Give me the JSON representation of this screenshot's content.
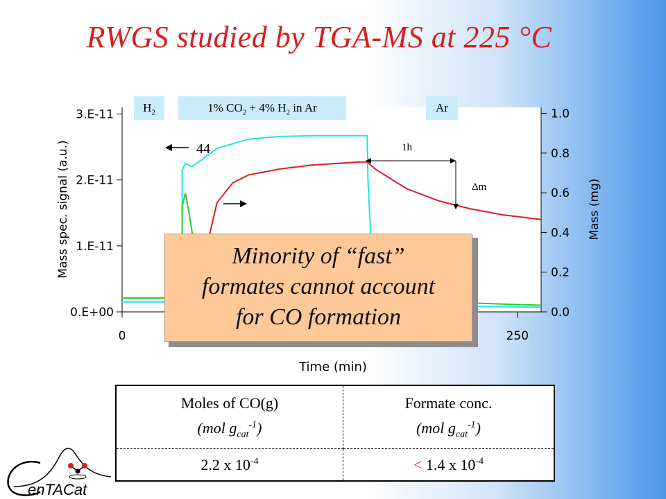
{
  "title": "RWGS studied by TGA-MS at 225 °C",
  "gas_tags": {
    "h2": {
      "base": "H",
      "sub": "2"
    },
    "feed": {
      "p1": "1% CO",
      "s1": "2",
      "p2": " + 4% H",
      "s2": "2",
      "p3": " in Ar"
    },
    "ar": "Ar"
  },
  "annotations": {
    "m44": "44",
    "one_hour": "1h",
    "delta_m": "Δm"
  },
  "callout_lines": [
    "Minority of “fast”",
    "formates cannot account",
    "for CO formation"
  ],
  "table": {
    "col1_header": {
      "line1": "Moles of CO(g)",
      "line2_pre": "(mol g",
      "line2_sub": "cat",
      "line2_sup": "-1",
      "line2_post": ")"
    },
    "col2_header": {
      "line1": "Formate conc.",
      "line2_pre": "(mol g",
      "line2_sub": "cat",
      "line2_sup": "-1",
      "line2_post": ")"
    },
    "col1_value": {
      "base": "2.2 x 10",
      "sup": "-4"
    },
    "col2_value": {
      "prefix": "<",
      "base": " 1.4 x 10",
      "sup": "-4"
    }
  },
  "logo": {
    "text": "enTACat",
    "initial": "C"
  },
  "chart_data": {
    "type": "line",
    "xlabel": "Time (min)",
    "ylabel_left": "Mass spec. signal (a.u.)",
    "ylabel_right": "Mass (mg)",
    "x_ticks": [
      "0",
      "250"
    ],
    "y_left_ticks": [
      "0.E+00",
      "1.E-11",
      "2.E-11",
      "3.E-11"
    ],
    "y_right_ticks": [
      "0.0",
      "0.2",
      "0.4",
      "0.6",
      "0.8",
      "1.0"
    ],
    "xlim": [
      0,
      265
    ],
    "ylim_left": [
      0,
      3.1e-11
    ],
    "ylim_right": [
      0,
      1.03
    ],
    "grid": false,
    "series": [
      {
        "axis": "left",
        "color": "#1fe3f0",
        "x": [
          0,
          38,
          38,
          40,
          44,
          50,
          60,
          80,
          100,
          120,
          140,
          150,
          155,
          155.5,
          158,
          160,
          170,
          200,
          230,
          265
        ],
        "y": [
          1.5e-12,
          1.5e-12,
          2.15e-11,
          2.25e-11,
          2.2e-11,
          2.3e-11,
          2.48e-11,
          2.62e-11,
          2.66e-11,
          2.67e-11,
          2.67e-11,
          2.67e-11,
          2.67e-11,
          2e-11,
          8e-12,
          2e-12,
          1.2e-12,
          1e-12,
          8e-13,
          7e-13
        ]
      },
      {
        "axis": "left",
        "color": "#2ec82e",
        "x": [
          0,
          38,
          38,
          40,
          42,
          45,
          50,
          55,
          60,
          70,
          80,
          90,
          100,
          150,
          200,
          265
        ],
        "y": [
          2.1e-12,
          2.1e-12,
          1.6e-11,
          1.8e-11,
          1.55e-11,
          1.1e-11,
          5e-12,
          2e-12,
          1.2e-12,
          1.5e-12,
          1.7e-12,
          1.8e-12,
          1.9e-12,
          2e-12,
          1.5e-12,
          1e-12
        ]
      },
      {
        "axis": "right",
        "color": "#dd1e1e",
        "x": [
          40,
          48,
          55,
          60,
          70,
          80,
          100,
          120,
          150,
          155,
          160,
          170,
          180,
          200,
          220,
          240,
          265
        ],
        "y": [
          0.05,
          0.2,
          0.38,
          0.55,
          0.65,
          0.69,
          0.72,
          0.74,
          0.755,
          0.755,
          0.72,
          0.67,
          0.62,
          0.56,
          0.52,
          0.49,
          0.465
        ]
      }
    ]
  }
}
